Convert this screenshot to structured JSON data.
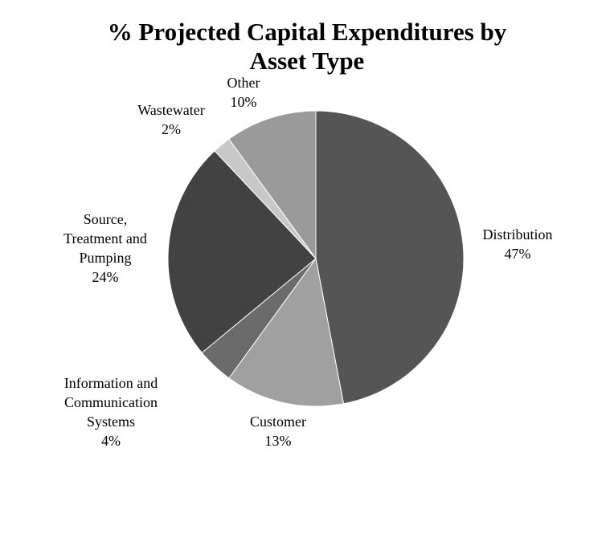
{
  "chart_data": {
    "type": "pie",
    "title_line1": "% Projected Capital Expenditures by",
    "title_line2": "Asset Type",
    "slices": [
      {
        "label_lines": [
          "Distribution"
        ],
        "value_text": "47%",
        "value": 47,
        "color": "#555555"
      },
      {
        "label_lines": [
          "Customer"
        ],
        "value_text": "13%",
        "value": 13,
        "color": "#a0a0a0"
      },
      {
        "label_lines": [
          "Information and",
          "Communication",
          "Systems"
        ],
        "value_text": "4%",
        "value": 4,
        "color": "#6b6b6b"
      },
      {
        "label_lines": [
          "Source,",
          "Treatment and",
          "Pumping"
        ],
        "value_text": "24%",
        "value": 24,
        "color": "#424242"
      },
      {
        "label_lines": [
          "Wastewater"
        ],
        "value_text": "2%",
        "value": 2,
        "color": "#c8c8c8"
      },
      {
        "label_lines": [
          "Other"
        ],
        "value_text": "10%",
        "value": 10,
        "color": "#9a9a9a"
      }
    ],
    "start_angle": "top",
    "direction": "clockwise",
    "legend": "none"
  }
}
